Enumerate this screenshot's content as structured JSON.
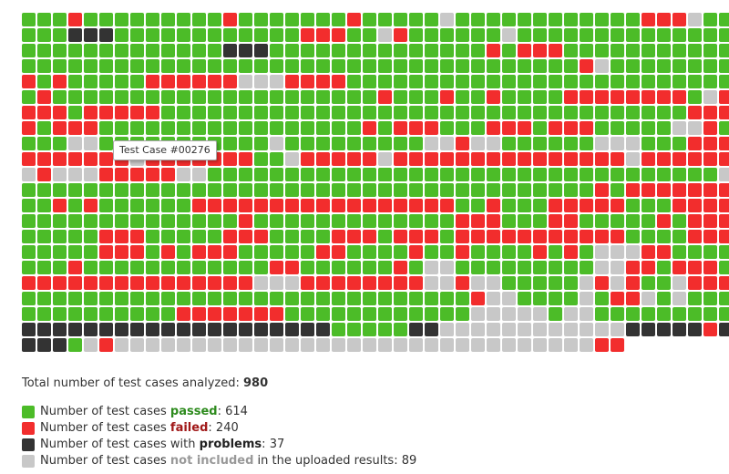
{
  "grid": {
    "colors": {
      "passed": "#4cbc28",
      "failed": "#f22d2d",
      "problem": "#333333",
      "not_included": "#c8c8c8"
    },
    "rows": [
      "pppfpppppppppfpppppppfpppppnppppppppppppfffnpppp",
      "pppxxxppppppppppppfffppnfppppppnppppppppppppppp",
      "pppppppppppppxxxppppppppppppppfpfffppppppppppp",
      "ppppppppppppppppppppppppppppppppppppfnpppppppp",
      "fpfpppppffffffnnnffffppppppppppppppppppppppppp",
      "pfpppppppppppppppppppppfpppfppfppppffffffffpnf",
      "fffpfffffppppppppppppppppppppppppppppppppppfff",
      "fpfffpppppppppppppppppfpfffpppfffpfffpppppnnfp",
      "pppnnpppppppppppnpppppppppnnfnnppppppnnnpppfff",
      "fffffffnfffffffppnfffffnfffffffffffffffnffffff",
      "nfnnnfffffnnpppppppppppppppppppppppppppppppppn",
      "pppppppppppppppppppppppppppppppppppppfpfffffff",
      "ppfpfppppppfffffffffffffffffppfpppfffffpppffff",
      "ppppppppppppppfpppppppppppppfffpppffpppppfpfff",
      "pppppfffpppppfffppppfffpfffpfffffffffffppppfff",
      "pppppfffpfpfffpppppffppppfppfppppfpfpnnnffpppp",
      "pppfppppppppppppffppppppfpnnpppppppppnnffpfffpp",
      "fffffffffffffffnnnffffffffnnfnnpppppnfnfppnffff",
      "pppppppppppppppppppppppppppppfnnppppnpffnpnppp",
      "ppppppppppfffffffppppppppppppnnnnnpnnppppppppp",
      "xxxxxxxxxxxxxxxxxxxxpppppxxnnnnnnnnnnnnxxxxxfxx",
      "xxxpnfnnnnnnnnnnnnnnnnnnnnnnnnnnnnnnnff"
    ],
    "tooltip": "Test Case #00276"
  },
  "summary": {
    "label": "Total number of test cases analyzed:",
    "total": "980"
  },
  "legend": [
    {
      "key": "passed",
      "pre": "Number of test cases",
      "kw": "passed",
      "post": ":",
      "value": "614",
      "kw_color": "#2e8b1e"
    },
    {
      "key": "failed",
      "pre": "Number of test cases",
      "kw": "failed",
      "post": ":",
      "value": "240",
      "kw_color": "#a01818"
    },
    {
      "key": "problem",
      "pre": "Number of test cases with",
      "kw": "problems",
      "post": ":",
      "value": "37",
      "kw_color": "#222222"
    },
    {
      "key": "not_included",
      "pre": "Number of test cases",
      "kw": "not included",
      "post": "in the uploaded results:",
      "value": "89",
      "kw_color": "#999999"
    }
  ]
}
